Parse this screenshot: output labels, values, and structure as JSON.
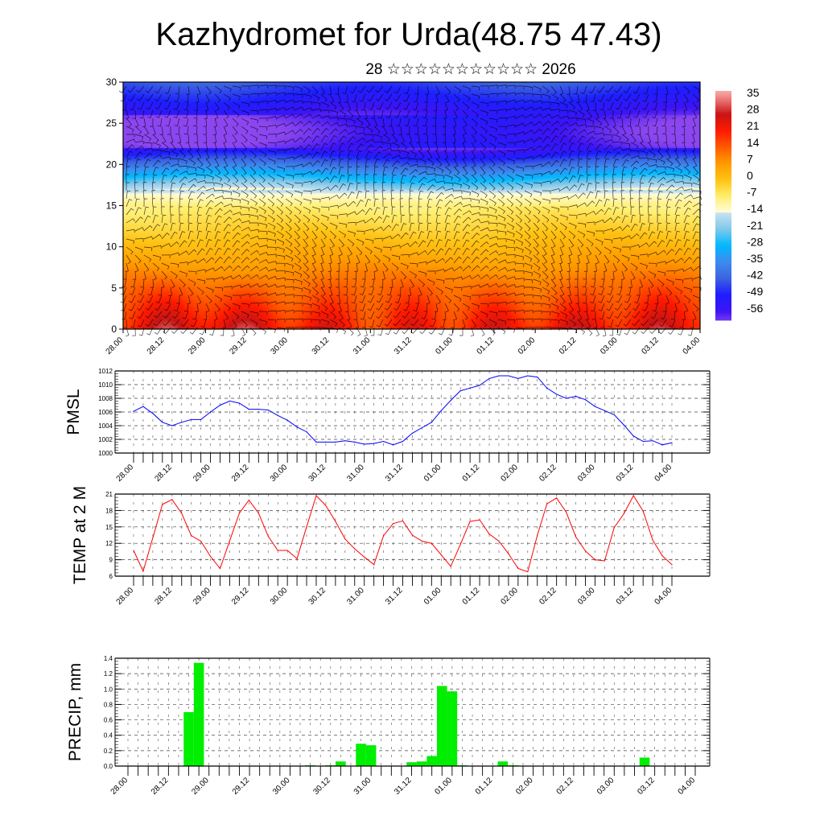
{
  "header": {
    "title": "Kazhydromet for Urda(48.75 47.43)",
    "subtitle": "28 ☆☆☆☆☆☆☆☆☆☆☆ 2026"
  },
  "colors": {
    "pmsl_line": "#0000ff",
    "temp_line": "#ff0000",
    "precip_bar": "#00ee00"
  },
  "chart_data": [
    {
      "id": "cross-section",
      "type": "heatmap",
      "title": "",
      "xlabel": "",
      "ylabel": "",
      "ylim": [
        0,
        30
      ],
      "yticks": [
        "0",
        "5",
        "10",
        "15",
        "20",
        "25",
        "30"
      ],
      "xticks": [
        "28.00",
        "28.12",
        "29.00",
        "29.12",
        "30.00",
        "30.12",
        "31.00",
        "31.12",
        "01.00",
        "01.12",
        "02.00",
        "02.12",
        "03.00",
        "03.12",
        "04.00"
      ],
      "colorbar": {
        "labels": [
          "35",
          "28",
          "21",
          "14",
          "7",
          "0",
          "-7",
          "-14",
          "-21",
          "-28",
          "-35",
          "-42",
          "-49",
          "-56"
        ],
        "range": [
          -60,
          38
        ]
      },
      "overlay": "wind barbs"
    },
    {
      "id": "pmsl",
      "type": "line",
      "ylabel": "PMSL",
      "ylim": [
        1000,
        1012
      ],
      "yticks": [
        "1000",
        "1002",
        "1004",
        "1006",
        "1008",
        "1010",
        "1012"
      ],
      "xticks": [
        "28.00",
        "28.12",
        "29.00",
        "29.12",
        "30.00",
        "30.12",
        "31.00",
        "31.12",
        "01.00",
        "01.12",
        "02.00",
        "02.12",
        "03.00",
        "03.12",
        "04.00"
      ],
      "x_step_hours": 3,
      "values": [
        1006.1,
        1006.8,
        1005.8,
        1004.5,
        1004.0,
        1004.5,
        1004.9,
        1004.9,
        1006.0,
        1007.0,
        1007.6,
        1007.3,
        1006.4,
        1006.4,
        1006.3,
        1005.5,
        1004.8,
        1003.8,
        1003.1,
        1001.6,
        1001.6,
        1001.6,
        1001.8,
        1001.6,
        1001.3,
        1001.4,
        1001.7,
        1001.2,
        1001.7,
        1002.9,
        1003.7,
        1004.5,
        1006.2,
        1007.7,
        1009.1,
        1009.5,
        1009.9,
        1010.9,
        1011.3,
        1011.3,
        1010.9,
        1011.3,
        1011.1,
        1009.5,
        1008.6,
        1008.0,
        1008.3,
        1007.8,
        1006.8,
        1006.2,
        1005.6,
        1004.1,
        1002.5,
        1001.7,
        1001.8,
        1001.2,
        1001.5
      ]
    },
    {
      "id": "temp",
      "type": "line",
      "ylabel": "TEMP at 2 M",
      "ylim": [
        6,
        21
      ],
      "yticks": [
        "6",
        "9",
        "12",
        "15",
        "18",
        "21"
      ],
      "xticks": [
        "28.00",
        "28.12",
        "29.00",
        "29.12",
        "30.00",
        "30.12",
        "31.00",
        "31.12",
        "01.00",
        "01.12",
        "02.00",
        "02.12",
        "03.00",
        "03.12",
        "04.00"
      ],
      "x_step_hours": 3,
      "values": [
        10.7,
        6.9,
        13.0,
        19.1,
        20.0,
        17.5,
        13.4,
        12.4,
        9.6,
        7.4,
        12.5,
        17.5,
        19.9,
        17.5,
        13.3,
        10.7,
        10.7,
        9.2,
        15.0,
        20.7,
        18.9,
        16.0,
        12.8,
        11.0,
        9.5,
        8.1,
        13.4,
        15.6,
        16.1,
        13.5,
        12.4,
        12.0,
        9.9,
        7.8,
        11.8,
        16.0,
        16.3,
        13.7,
        12.4,
        10.1,
        7.4,
        6.8,
        13.5,
        19.2,
        20.3,
        17.7,
        13.2,
        10.6,
        9.0,
        8.8,
        14.9,
        17.4,
        20.7,
        17.9,
        12.6,
        9.7,
        8.1
      ]
    },
    {
      "id": "precip",
      "type": "bar",
      "ylabel": "PRECIP, mm",
      "ylim": [
        0,
        1.4
      ],
      "yticks": [
        "0.0",
        "0.2",
        "0.4",
        "0.6",
        "0.8",
        "1.0",
        "1.2",
        "1.4"
      ],
      "xticks": [
        "28.00",
        "28.12",
        "29.00",
        "29.12",
        "30.00",
        "30.12",
        "31.00",
        "31.12",
        "01.00",
        "01.12",
        "02.00",
        "02.12",
        "03.00",
        "03.12",
        "04.00"
      ],
      "x_step_hours": 3,
      "bars": [
        {
          "index": 6,
          "value": 0.7
        },
        {
          "index": 7,
          "value": 1.34
        },
        {
          "index": 18,
          "value": 0.01
        },
        {
          "index": 20,
          "value": 0.01
        },
        {
          "index": 21,
          "value": 0.06
        },
        {
          "index": 23,
          "value": 0.29
        },
        {
          "index": 24,
          "value": 0.27
        },
        {
          "index": 28,
          "value": 0.05
        },
        {
          "index": 29,
          "value": 0.06
        },
        {
          "index": 30,
          "value": 0.13
        },
        {
          "index": 31,
          "value": 1.04
        },
        {
          "index": 32,
          "value": 0.97
        },
        {
          "index": 33,
          "value": 0.01
        },
        {
          "index": 37,
          "value": 0.06
        },
        {
          "index": 38,
          "value": 0.01
        },
        {
          "index": 51,
          "value": 0.11
        }
      ]
    }
  ]
}
